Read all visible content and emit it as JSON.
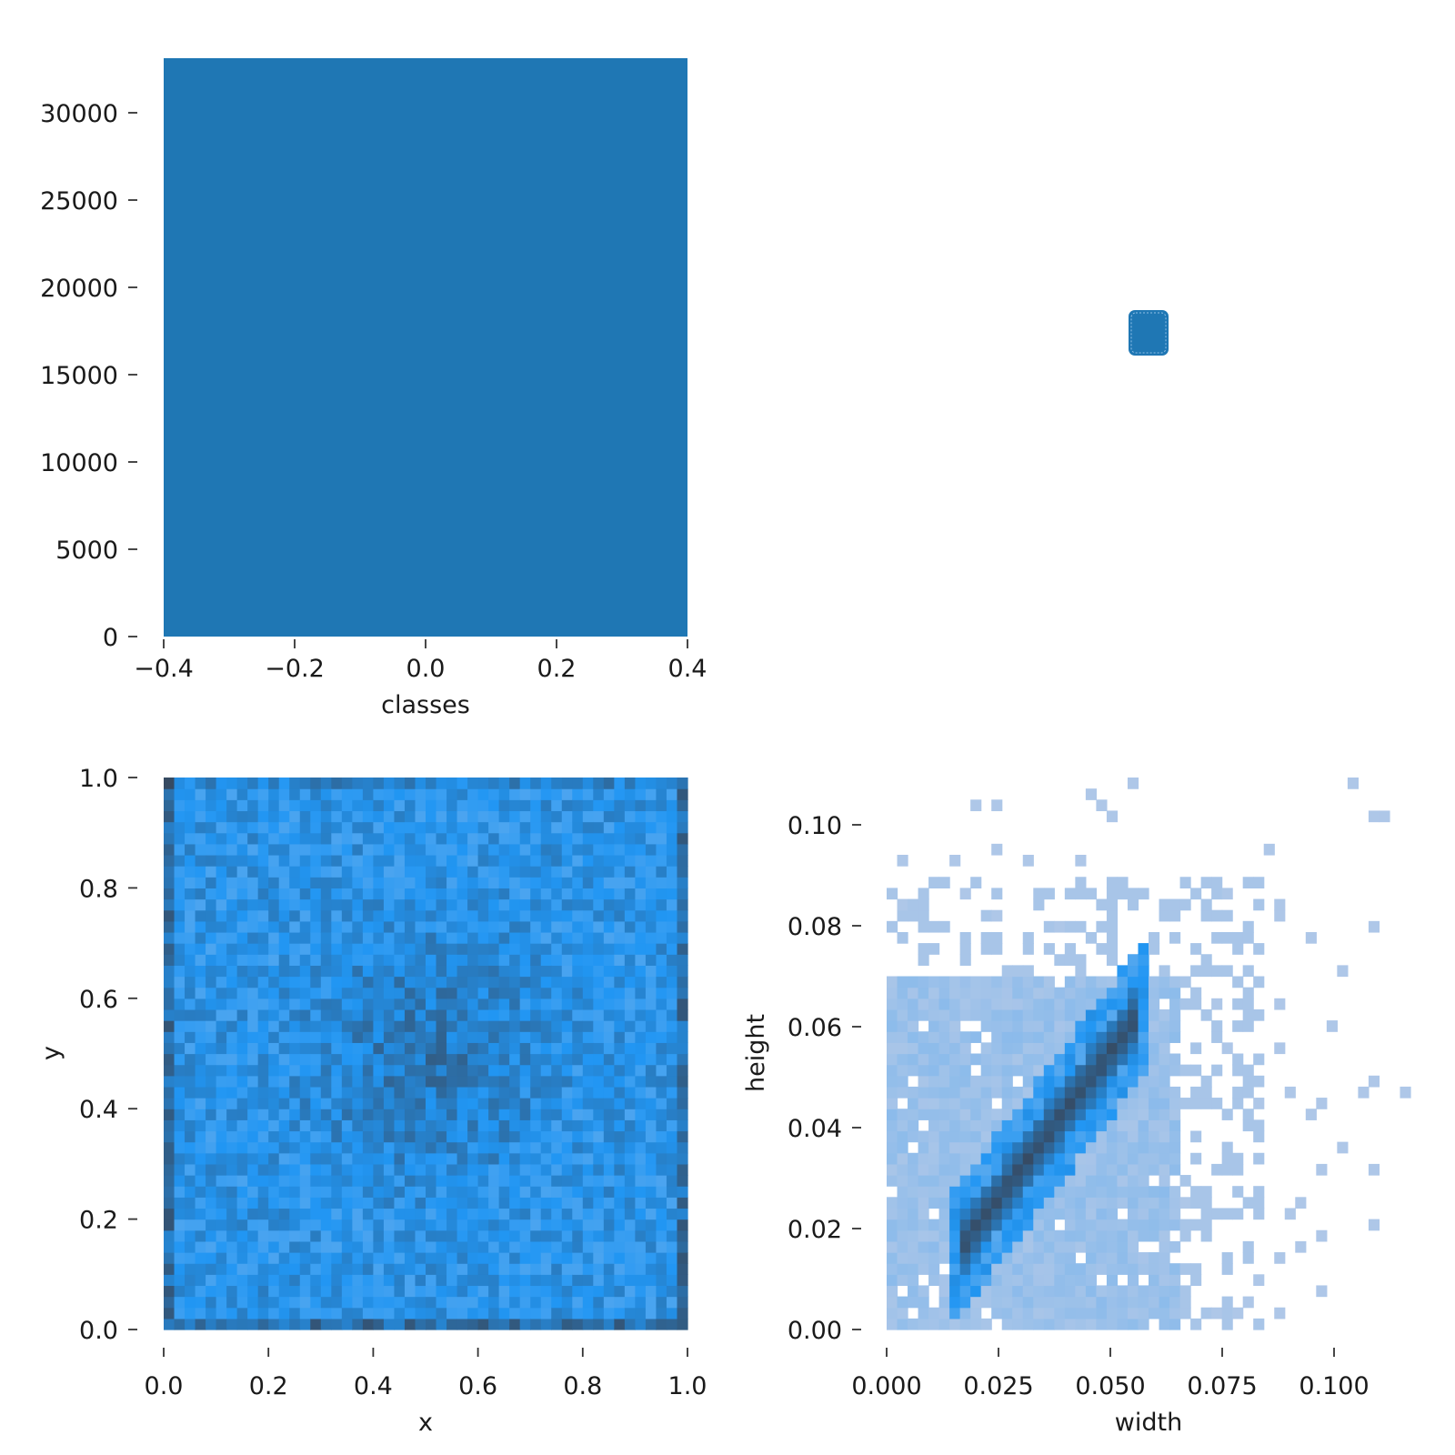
{
  "colors": {
    "bar": "#1f77b4",
    "hist_low": "#aec7e8",
    "hist_mid": "#2196f3",
    "hist_high": "#37475c"
  },
  "chart_data": [
    {
      "type": "bar",
      "xlabel": "classes",
      "ylabel": "",
      "x_ticks": [
        "−0.4",
        "−0.2",
        "0.0",
        "0.2",
        "0.4"
      ],
      "y_ticks": [
        "0",
        "5000",
        "10000",
        "15000",
        "20000",
        "25000",
        "30000"
      ],
      "xlim": [
        -0.4,
        0.4
      ],
      "ylim": [
        0,
        33000
      ],
      "categories": [
        "0"
      ],
      "values": [
        33000
      ],
      "bar_extent": [
        -0.4,
        0.4
      ]
    },
    {
      "type": "scatter",
      "xlabel": "",
      "ylabel": "",
      "x_ticks": [],
      "y_ticks": [],
      "points": [
        [
          0.5,
          0.5
        ]
      ]
    },
    {
      "type": "heatmap",
      "xlabel": "x",
      "ylabel": "y",
      "x_ticks": [
        "0.0",
        "0.2",
        "0.4",
        "0.6",
        "0.8",
        "1.0"
      ],
      "y_ticks": [
        "0.0",
        "0.2",
        "0.4",
        "0.6",
        "0.8",
        "1.0"
      ],
      "xlim": [
        0,
        1
      ],
      "ylim": [
        0,
        1
      ],
      "bins": 50,
      "pattern": "roughly uniform density with a darker cluster near (0.5, 0.5) and darker edges"
    },
    {
      "type": "heatmap",
      "xlabel": "width",
      "ylabel": "height",
      "x_ticks": [
        "0.000",
        "0.025",
        "0.050",
        "0.075",
        "0.100"
      ],
      "y_ticks": [
        "0.00",
        "0.02",
        "0.04",
        "0.06",
        "0.08",
        "0.10"
      ],
      "xlim": [
        0,
        0.118
      ],
      "ylim": [
        0,
        0.109
      ],
      "bins": 50,
      "pattern": "dense diagonal ridge from (0.02, 0.02) to (0.055, 0.06); light broad block 0–0.065 wide by 0–0.07 high; sparse outliers up to 0.11"
    }
  ]
}
